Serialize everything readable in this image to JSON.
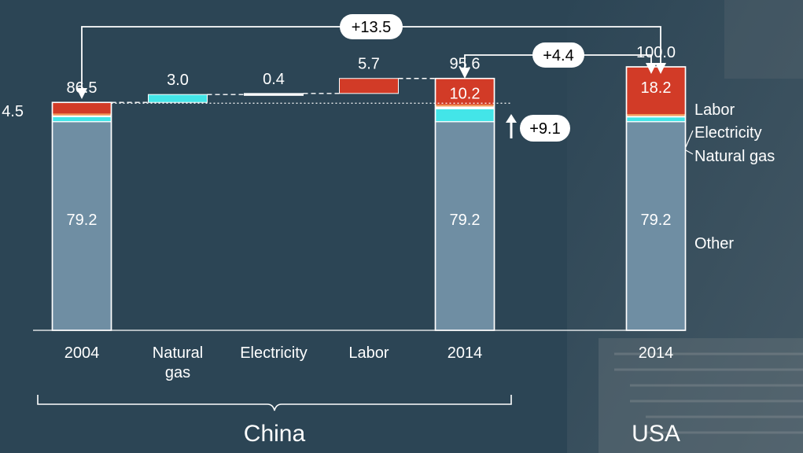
{
  "chart_data": {
    "type": "bar",
    "subtype": "waterfall",
    "categories": [
      "2004",
      "Natural gas",
      "Electricity",
      "Labor",
      "2014",
      "2014"
    ],
    "category_lines": [
      [
        "2004"
      ],
      [
        "Natural",
        "gas"
      ],
      [
        "Electricity"
      ],
      [
        "Labor"
      ],
      [
        "2014"
      ],
      [
        "2014"
      ]
    ],
    "groups": [
      {
        "label": "China",
        "categories": [
          "2004",
          "Natural gas",
          "Electricity",
          "Labor",
          "2014"
        ]
      },
      {
        "label": "USA",
        "categories": [
          "2014"
        ]
      }
    ],
    "series": [
      {
        "name": "Other",
        "values": [
          79.2,
          null,
          null,
          null,
          79.2,
          79.2
        ]
      },
      {
        "name": "Natural gas",
        "values": [
          1.9,
          3.0,
          null,
          null,
          4.9,
          1.8
        ]
      },
      {
        "name": "Electricity",
        "values": [
          0.9,
          null,
          0.4,
          null,
          1.3,
          0.8
        ]
      },
      {
        "name": "Labor",
        "values": [
          4.5,
          null,
          null,
          5.7,
          10.2,
          18.2
        ]
      }
    ],
    "totals": [
      86.5,
      null,
      null,
      null,
      95.6,
      100.0
    ],
    "total_labels": [
      "86.5",
      null,
      null,
      null,
      "95.6",
      "100.0"
    ],
    "increments": [
      null,
      3.0,
      0.4,
      5.7,
      null,
      null
    ],
    "increment_labels": [
      null,
      "3.0",
      "0.4",
      "5.7",
      null,
      null
    ],
    "segment_labels": {
      "other": [
        "79.2",
        null,
        null,
        null,
        "79.2",
        "79.2"
      ],
      "labor_2004_outside": "4.5",
      "labor_2014_china": "10.2",
      "labor_2014_usa": "18.2"
    },
    "legend": [
      "Labor",
      "Electricity",
      "Natural gas",
      "Other"
    ],
    "annotations": [
      {
        "text": "+13.5",
        "from": "2004",
        "to": "USA 2014"
      },
      {
        "text": "+4.4",
        "from": "China 2014",
        "to": "USA 2014"
      },
      {
        "text": "+9.1",
        "target": "China 2014"
      }
    ],
    "ylim": [
      0,
      100
    ],
    "grid": false,
    "xlabel": "",
    "ylabel": "",
    "title": ""
  },
  "colors": {
    "background": "#2c4555",
    "other": "#6f8ea3",
    "natural_gas": "#43e5e8",
    "electricity": "#ffffff",
    "labor": "#d23b27",
    "orange_thin": "#f2975a",
    "text": "#ffffff"
  }
}
